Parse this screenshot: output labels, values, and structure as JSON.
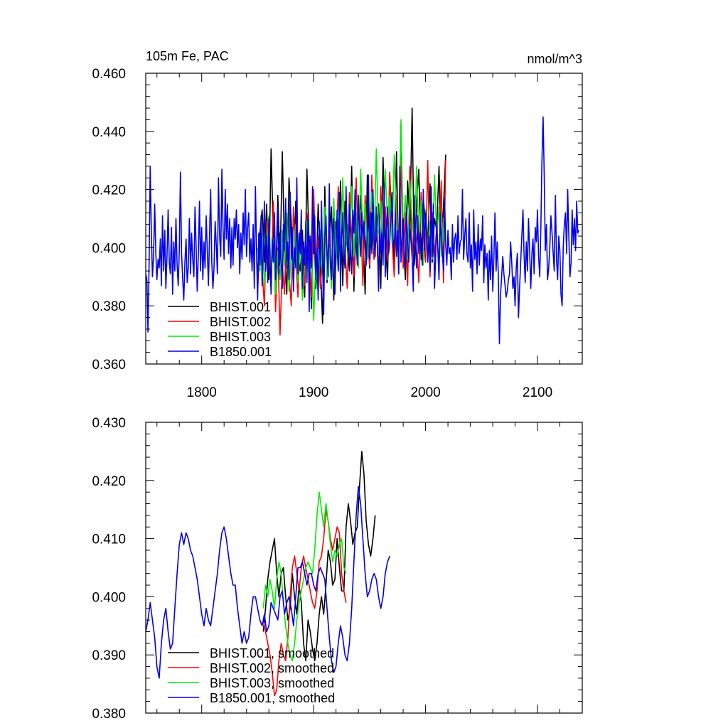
{
  "chart_data": [
    {
      "type": "line",
      "title": "105m Fe, PAC",
      "units": "nmol/m^3",
      "xlim": [
        1750,
        2140
      ],
      "ylim": [
        0.36,
        0.46
      ],
      "x_ticks": [
        1800,
        1900,
        2000,
        2100
      ],
      "x_tick_labels": [
        "1800",
        "1900",
        "2000",
        "2100"
      ],
      "y_ticks": [
        0.36,
        0.38,
        0.4,
        0.42,
        0.44,
        0.46
      ],
      "y_tick_labels": [
        "0.360",
        "0.380",
        "0.400",
        "0.420",
        "0.440",
        "0.460"
      ],
      "grid": false,
      "legend_position": "bottom-left",
      "series": [
        {
          "name": "BHIST.001",
          "color": "#000000",
          "x_start": 1850,
          "x_step": 2,
          "values": [
            0.392,
            0.405,
            0.413,
            0.395,
            0.415,
            0.389,
            0.434,
            0.404,
            0.387,
            0.418,
            0.394,
            0.433,
            0.399,
            0.384,
            0.424,
            0.409,
            0.388,
            0.416,
            0.398,
            0.392,
            0.406,
            0.383,
            0.427,
            0.401,
            0.379,
            0.412,
            0.386,
            0.415,
            0.395,
            0.374,
            0.421,
            0.388,
            0.403,
            0.414,
            0.382,
            0.409,
            0.392,
            0.423,
            0.387,
            0.416,
            0.401,
            0.392,
            0.428,
            0.385,
            0.411,
            0.396,
            0.418,
            0.405,
            0.384,
            0.425,
            0.393,
            0.412,
            0.396,
            0.404,
            0.415,
            0.386,
            0.431,
            0.403,
            0.389,
            0.425,
            0.408,
            0.394,
            0.433,
            0.391,
            0.442,
            0.402,
            0.389,
            0.423,
            0.407,
            0.448,
            0.394,
            0.415,
            0.427,
            0.396,
            0.417,
            0.408,
            0.403,
            0.422,
            0.395,
            0.41,
            0.406,
            0.428,
            0.399,
            0.414,
            0.432
          ]
        },
        {
          "name": "BHIST.002",
          "color": "#ff0000",
          "x_start": 1850,
          "x_step": 2,
          "values": [
            0.385,
            0.403,
            0.392,
            0.38,
            0.409,
            0.397,
            0.386,
            0.416,
            0.378,
            0.4,
            0.37,
            0.394,
            0.384,
            0.409,
            0.391,
            0.38,
            0.414,
            0.398,
            0.383,
            0.406,
            0.394,
            0.387,
            0.412,
            0.399,
            0.383,
            0.42,
            0.392,
            0.404,
            0.386,
            0.397,
            0.411,
            0.393,
            0.405,
            0.389,
            0.415,
            0.398,
            0.421,
            0.394,
            0.409,
            0.4,
            0.386,
            0.419,
            0.404,
            0.39,
            0.424,
            0.398,
            0.412,
            0.387,
            0.418,
            0.403,
            0.394,
            0.425,
            0.396,
            0.408,
            0.39,
            0.421,
            0.401,
            0.414,
            0.396,
            0.426,
            0.403,
            0.39,
            0.418,
            0.399,
            0.43,
            0.393,
            0.412,
            0.387,
            0.428,
            0.396,
            0.41,
            0.402,
            0.388,
            0.419,
            0.404,
            0.395,
            0.43,
            0.39,
            0.412,
            0.397,
            0.407,
            0.393,
            0.423,
            0.388,
            0.43
          ]
        },
        {
          "name": "BHIST.003",
          "color": "#00ee00",
          "x_start": 1850,
          "x_step": 2,
          "values": [
            0.4,
            0.392,
            0.405,
            0.387,
            0.397,
            0.411,
            0.391,
            0.403,
            0.384,
            0.399,
            0.389,
            0.406,
            0.394,
            0.412,
            0.385,
            0.398,
            0.392,
            0.408,
            0.388,
            0.403,
            0.382,
            0.395,
            0.409,
            0.387,
            0.401,
            0.375,
            0.396,
            0.384,
            0.406,
            0.391,
            0.414,
            0.389,
            0.4,
            0.386,
            0.417,
            0.394,
            0.41,
            0.398,
            0.424,
            0.395,
            0.408,
            0.402,
            0.421,
            0.397,
            0.412,
            0.393,
            0.427,
            0.404,
            0.415,
            0.396,
            0.41,
            0.419,
            0.4,
            0.434,
            0.405,
            0.416,
            0.399,
            0.427,
            0.408,
            0.418,
            0.402,
            0.432,
            0.411,
            0.396,
            0.444,
            0.405,
            0.418,
            0.396,
            0.423,
            0.41,
            0.401,
            0.428,
            0.403,
            0.416,
            0.394,
            0.413,
            0.4,
            0.409,
            0.396,
            0.425,
            0.404,
            0.414,
            0.397,
            0.41,
            0.402
          ]
        },
        {
          "name": "B1850.001",
          "color": "#0000ee",
          "x_start": 1750,
          "x_step": 1,
          "values": [
            0.391,
            0.389,
            0.371,
            0.394,
            0.428,
            0.405,
            0.39,
            0.397,
            0.415,
            0.398,
            0.389,
            0.396,
            0.393,
            0.403,
            0.387,
            0.411,
            0.392,
            0.406,
            0.386,
            0.397,
            0.413,
            0.395,
            0.391,
            0.407,
            0.384,
            0.402,
            0.392,
            0.41,
            0.394,
            0.387,
            0.399,
            0.426,
            0.398,
            0.389,
            0.382,
            0.395,
            0.403,
            0.388,
            0.393,
            0.41,
            0.391,
            0.405,
            0.396,
            0.39,
            0.414,
            0.401,
            0.385,
            0.398,
            0.416,
            0.392,
            0.407,
            0.389,
            0.402,
            0.393,
            0.411,
            0.399,
            0.387,
            0.404,
            0.42,
            0.395,
            0.386,
            0.393,
            0.409,
            0.401,
            0.391,
            0.424,
            0.404,
            0.397,
            0.427,
            0.408,
            0.396,
            0.42,
            0.403,
            0.415,
            0.398,
            0.41,
            0.393,
            0.407,
            0.394,
            0.41,
            0.403,
            0.413,
            0.4,
            0.408,
            0.391,
            0.405,
            0.396,
            0.412,
            0.401,
            0.42,
            0.397,
            0.407,
            0.412,
            0.395,
            0.403,
            0.392,
            0.408,
            0.386,
            0.421,
            0.398,
            0.382,
            0.405,
            0.394,
            0.411,
            0.387,
            0.399,
            0.416,
            0.392,
            0.404,
            0.388,
            0.41,
            0.396,
            0.384,
            0.403,
            0.395,
            0.412,
            0.389,
            0.398,
            0.414,
            0.391,
            0.405,
            0.396,
            0.386,
            0.408,
            0.399,
            0.417,
            0.393,
            0.402,
            0.389,
            0.419,
            0.396,
            0.407,
            0.385,
            0.4,
            0.393,
            0.424,
            0.391,
            0.405,
            0.398,
            0.413,
            0.386,
            0.402,
            0.394,
            0.409,
            0.388,
            0.411,
            0.378,
            0.404,
            0.393,
            0.421,
            0.398,
            0.411,
            0.389,
            0.4,
            0.382,
            0.409,
            0.393,
            0.416,
            0.395,
            0.377,
            0.404,
            0.411,
            0.398,
            0.39,
            0.422,
            0.394,
            0.389,
            0.406,
            0.41,
            0.384,
            0.4,
            0.413,
            0.392,
            0.419,
            0.385,
            0.404,
            0.412,
            0.398,
            0.393,
            0.421,
            0.402,
            0.396,
            0.415,
            0.398,
            0.391,
            0.413,
            0.405,
            0.42,
            0.402,
            0.394,
            0.418,
            0.406,
            0.397,
            0.412,
            0.403,
            0.409,
            0.4,
            0.394,
            0.405,
            0.425,
            0.396,
            0.412,
            0.398,
            0.42,
            0.402,
            0.397,
            0.414,
            0.401,
            0.385,
            0.411,
            0.398,
            0.405,
            0.394,
            0.422,
            0.39,
            0.406,
            0.414,
            0.398,
            0.402,
            0.41,
            0.419,
            0.403,
            0.4,
            0.412,
            0.397,
            0.406,
            0.391,
            0.428,
            0.395,
            0.403,
            0.41,
            0.398,
            0.393,
            0.414,
            0.401,
            0.395,
            0.408,
            0.402,
            0.397,
            0.385,
            0.418,
            0.4,
            0.393,
            0.411,
            0.398,
            0.405,
            0.401,
            0.394,
            0.42,
            0.399,
            0.412,
            0.405,
            0.395,
            0.404,
            0.392,
            0.421,
            0.397,
            0.415,
            0.386,
            0.397,
            0.409,
            0.399,
            0.389,
            0.412,
            0.403,
            0.398,
            0.392,
            0.417,
            0.401,
            0.394,
            0.406,
            0.398,
            0.4,
            0.389,
            0.408,
            0.395,
            0.403,
            0.405,
            0.396,
            0.411,
            0.398,
            0.402,
            0.403,
            0.42,
            0.396,
            0.404,
            0.41,
            0.398,
            0.395,
            0.412,
            0.393,
            0.401,
            0.385,
            0.413,
            0.396,
            0.402,
            0.391,
            0.408,
            0.394,
            0.403,
            0.399,
            0.411,
            0.388,
            0.401,
            0.393,
            0.398,
            0.382,
            0.399,
            0.389,
            0.404,
            0.385,
            0.396,
            0.412,
            0.392,
            0.402,
            0.391,
            0.367,
            0.384,
            0.39,
            0.397,
            0.391,
            0.387,
            0.383,
            0.385,
            0.389,
            0.391,
            0.402,
            0.395,
            0.386,
            0.39,
            0.38,
            0.393,
            0.398,
            0.376,
            0.386,
            0.395,
            0.404,
            0.413,
            0.398,
            0.388,
            0.402,
            0.392,
            0.41,
            0.399,
            0.386,
            0.398,
            0.403,
            0.391,
            0.407,
            0.402,
            0.413,
            0.397,
            0.39,
            0.406,
            0.43,
            0.445,
            0.425,
            0.399,
            0.408,
            0.389,
            0.393,
            0.4,
            0.411,
            0.405,
            0.398,
            0.392,
            0.418,
            0.396,
            0.389,
            0.404,
            0.399,
            0.384,
            0.38,
            0.4,
            0.408,
            0.412,
            0.398,
            0.42,
            0.404,
            0.39,
            0.395,
            0.413,
            0.401,
            0.41,
            0.399,
            0.416,
            0.405,
            0.406
          ]
        }
      ]
    },
    {
      "type": "line",
      "title": "",
      "units": "",
      "xlim": [
        1750,
        2140
      ],
      "ylim": [
        0.38,
        0.43
      ],
      "x_ticks": [
        1800,
        1900,
        2000,
        2100
      ],
      "x_tick_labels": [
        "",
        "",
        "",
        ""
      ],
      "y_ticks": [
        0.38,
        0.39,
        0.4,
        0.41,
        0.42,
        0.43
      ],
      "y_tick_labels": [
        "0.380",
        "0.390",
        "0.400",
        "0.410",
        "0.420",
        "0.430"
      ],
      "grid": false,
      "legend_position": "bottom-left",
      "series": [
        {
          "name": "BHIST.001, smoothed",
          "color": "#000000",
          "x_start": 1855,
          "x_step": 2,
          "values": [
            0.394,
            0.398,
            0.403,
            0.406,
            0.408,
            0.41,
            0.404,
            0.4,
            0.404,
            0.405,
            0.4,
            0.396,
            0.398,
            0.404,
            0.4,
            0.397,
            0.402,
            0.399,
            0.392,
            0.389,
            0.396,
            0.394,
            0.391,
            0.389,
            0.392,
            0.397,
            0.4,
            0.397,
            0.402,
            0.408,
            0.406,
            0.402,
            0.403,
            0.41,
            0.405,
            0.401,
            0.401,
            0.412,
            0.416,
            0.413,
            0.409,
            0.411,
            0.412,
            0.419,
            0.425,
            0.421,
            0.413,
            0.409,
            0.407,
            0.41,
            0.414
          ]
        },
        {
          "name": "BHIST.002, smoothed",
          "color": "#ff0000",
          "x_start": 1855,
          "x_step": 2,
          "values": [
            0.396,
            0.394,
            0.392,
            0.39,
            0.387,
            0.383,
            0.384,
            0.389,
            0.392,
            0.39,
            0.389,
            0.393,
            0.4,
            0.405,
            0.407,
            0.404,
            0.401,
            0.405,
            0.407,
            0.405,
            0.403,
            0.401,
            0.399,
            0.398,
            0.401,
            0.406,
            0.407,
            0.41,
            0.415,
            0.413,
            0.41,
            0.408,
            0.41,
            0.412,
            0.411,
            0.404,
            0.401,
            0.399
          ]
        },
        {
          "name": "BHIST.003, smoothed",
          "color": "#00ee00",
          "x_start": 1855,
          "x_step": 2,
          "values": [
            0.398,
            0.402,
            0.4,
            0.403,
            0.401,
            0.398,
            0.403,
            0.406,
            0.404,
            0.399,
            0.395,
            0.392,
            0.39,
            0.389,
            0.392,
            0.396,
            0.399,
            0.401,
            0.403,
            0.405,
            0.406,
            0.405,
            0.404,
            0.408,
            0.414,
            0.418,
            0.415,
            0.412,
            0.416,
            0.413,
            0.409,
            0.406,
            0.408,
            0.407,
            0.409,
            0.41,
            0.405,
            0.404
          ]
        },
        {
          "name": "B1850.001, smoothed",
          "color": "#0000ee",
          "x_start": 1750,
          "x_step": 2,
          "values": [
            0.394,
            0.396,
            0.399,
            0.396,
            0.393,
            0.388,
            0.386,
            0.392,
            0.396,
            0.398,
            0.394,
            0.391,
            0.392,
            0.398,
            0.404,
            0.409,
            0.411,
            0.409,
            0.411,
            0.41,
            0.408,
            0.407,
            0.405,
            0.403,
            0.4,
            0.397,
            0.395,
            0.398,
            0.396,
            0.395,
            0.398,
            0.401,
            0.404,
            0.408,
            0.411,
            0.412,
            0.41,
            0.407,
            0.404,
            0.402,
            0.402,
            0.398,
            0.395,
            0.392,
            0.394,
            0.392,
            0.393,
            0.397,
            0.4,
            0.4,
            0.398,
            0.396,
            0.395,
            0.397,
            0.394,
            0.395,
            0.399,
            0.398,
            0.397,
            0.396,
            0.4,
            0.401,
            0.397,
            0.399,
            0.4,
            0.398,
            0.395,
            0.4,
            0.405,
            0.405,
            0.406,
            0.404,
            0.402,
            0.404,
            0.404,
            0.402,
            0.401,
            0.404,
            0.405,
            0.404,
            0.403,
            0.398,
            0.393,
            0.389,
            0.387,
            0.388,
            0.392,
            0.395,
            0.393,
            0.39,
            0.389,
            0.392,
            0.398,
            0.406,
            0.414,
            0.419,
            0.416,
            0.41,
            0.404,
            0.4,
            0.401,
            0.403,
            0.404,
            0.403,
            0.4,
            0.398,
            0.4,
            0.404,
            0.406,
            0.407
          ]
        }
      ]
    }
  ]
}
